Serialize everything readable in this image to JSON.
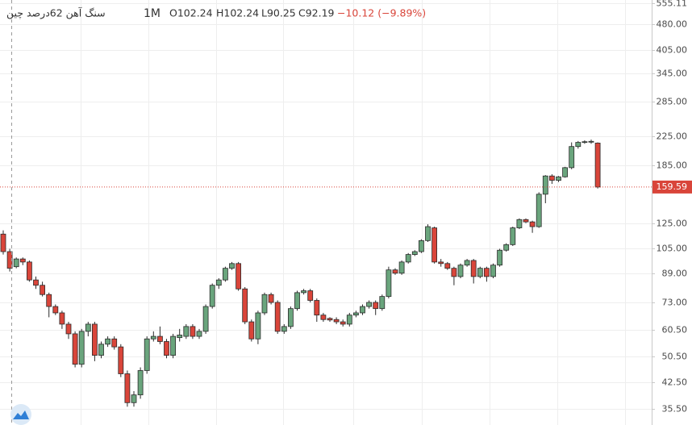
{
  "chart_data": {
    "type": "candlestick",
    "log_scale": true,
    "grid": true,
    "legend": {
      "symbol": "سنگ آهن 62درصد چین",
      "interval": "1M",
      "open": "O102.24",
      "high": "H102.24",
      "low": "L90.25",
      "close": "C92.19",
      "change": "−10.12 (−9.89%)"
    },
    "up_color": "#6aa57d",
    "down_color": "#d9453a",
    "ylim": [
      31.8,
      567
    ],
    "yticks": [
      {
        "value": 35.5,
        "label": "35.50"
      },
      {
        "value": 42.5,
        "label": "42.50"
      },
      {
        "value": 50.5,
        "label": "50.50"
      },
      {
        "value": 60.5,
        "label": "60.50"
      },
      {
        "value": 73,
        "label": "73.00"
      },
      {
        "value": 89,
        "label": "89.00"
      },
      {
        "value": 105,
        "label": "105.00"
      },
      {
        "value": 125,
        "label": "125.00"
      },
      {
        "value": 185,
        "label": "185.00"
      },
      {
        "value": 225,
        "label": "225.00"
      },
      {
        "value": 285,
        "label": "285.00"
      },
      {
        "value": 345,
        "label": "345.00"
      },
      {
        "value": 405,
        "label": "405.00"
      },
      {
        "value": 480,
        "label": "480.00"
      },
      {
        "value": 555.11,
        "label": "555.11"
      }
    ],
    "last_price": 159.59,
    "ohlc": [
      [
        116,
        119,
        101,
        103
      ],
      [
        103,
        105,
        90,
        92
      ],
      [
        93,
        99,
        92,
        98
      ],
      [
        98,
        99,
        94,
        96
      ],
      [
        96,
        97,
        84,
        85
      ],
      [
        85,
        87,
        80,
        82
      ],
      [
        82,
        84,
        76,
        77
      ],
      [
        77,
        78,
        66,
        71
      ],
      [
        71,
        72,
        67,
        68
      ],
      [
        68,
        69,
        61,
        63
      ],
      [
        63,
        64,
        57,
        59
      ],
      [
        59,
        60,
        47,
        48
      ],
      [
        48,
        61,
        47,
        60
      ],
      [
        60,
        64,
        58,
        63
      ],
      [
        63,
        64,
        49,
        51
      ],
      [
        51,
        56,
        50,
        55
      ],
      [
        55,
        58,
        54,
        57
      ],
      [
        57,
        58,
        53,
        54
      ],
      [
        54,
        55,
        44,
        45
      ],
      [
        45,
        46,
        36,
        37
      ],
      [
        37,
        40,
        36,
        39
      ],
      [
        39,
        47,
        38,
        46
      ],
      [
        46,
        58,
        45,
        57
      ],
      [
        57,
        60,
        56,
        58
      ],
      [
        58,
        62,
        55,
        56
      ],
      [
        56,
        57,
        50,
        51
      ],
      [
        51,
        59,
        50,
        58
      ],
      [
        57.5,
        61,
        56,
        58.5
      ],
      [
        58,
        63,
        57,
        62
      ],
      [
        62,
        63,
        57,
        58
      ],
      [
        58,
        61,
        57,
        60
      ],
      [
        60,
        72,
        59,
        71
      ],
      [
        71,
        83,
        70,
        82
      ],
      [
        82,
        86,
        80,
        85
      ],
      [
        85,
        93,
        84,
        92
      ],
      [
        92,
        96,
        91,
        95
      ],
      [
        95,
        96,
        79,
        80
      ],
      [
        80,
        81,
        63,
        64
      ],
      [
        64,
        65,
        56,
        57
      ],
      [
        57,
        69,
        55,
        68
      ],
      [
        68,
        78,
        67,
        77
      ],
      [
        77,
        78,
        72,
        73
      ],
      [
        73,
        74,
        59,
        60
      ],
      [
        60,
        63,
        59,
        62
      ],
      [
        62,
        71,
        61,
        70
      ],
      [
        70,
        79,
        69,
        78
      ],
      [
        78,
        80,
        77,
        79
      ],
      [
        79,
        80,
        73,
        74
      ],
      [
        74,
        75,
        64,
        67
      ],
      [
        67,
        68,
        64,
        65
      ],
      [
        65.5,
        66,
        64,
        64.8
      ],
      [
        65,
        66,
        63,
        64
      ],
      [
        64,
        65,
        62,
        63
      ],
      [
        63,
        68,
        62,
        67
      ],
      [
        67,
        69,
        66,
        68
      ],
      [
        68,
        72,
        67,
        71
      ],
      [
        71,
        74,
        70,
        73
      ],
      [
        73,
        74,
        67,
        70
      ],
      [
        70,
        77,
        69,
        76
      ],
      [
        76,
        93,
        75,
        91
      ],
      [
        91,
        92,
        88,
        89
      ],
      [
        89,
        97,
        88,
        96
      ],
      [
        96,
        102,
        95,
        101
      ],
      [
        101,
        104,
        100,
        103
      ],
      [
        103,
        112,
        102,
        111
      ],
      [
        111,
        124,
        110,
        122
      ],
      [
        121,
        122,
        95,
        96
      ],
      [
        96,
        98,
        93,
        95
      ],
      [
        95,
        96,
        91,
        92
      ],
      [
        92,
        93,
        82,
        87
      ],
      [
        87,
        95,
        86,
        94
      ],
      [
        94,
        98,
        93,
        97
      ],
      [
        97,
        98,
        83,
        87
      ],
      [
        87,
        93,
        86,
        92
      ],
      [
        92,
        93,
        84,
        87
      ],
      [
        87,
        95,
        86,
        94
      ],
      [
        94,
        105,
        93,
        104
      ],
      [
        104,
        109,
        103,
        108
      ],
      [
        108,
        122,
        107,
        121
      ],
      [
        121,
        129,
        120,
        128
      ],
      [
        128,
        129,
        125,
        126
      ],
      [
        126,
        127,
        117,
        122
      ],
      [
        122,
        154,
        121,
        152
      ],
      [
        152,
        173,
        143,
        172
      ],
      [
        172,
        174,
        163,
        167
      ],
      [
        167,
        172,
        165,
        171
      ],
      [
        171,
        183,
        170,
        182
      ],
      [
        182,
        216,
        180,
        210
      ],
      [
        210,
        218,
        207,
        216
      ],
      [
        216,
        219,
        214,
        217
      ],
      [
        217,
        220,
        214,
        217.5
      ],
      [
        215,
        216,
        158,
        159.59
      ]
    ]
  }
}
